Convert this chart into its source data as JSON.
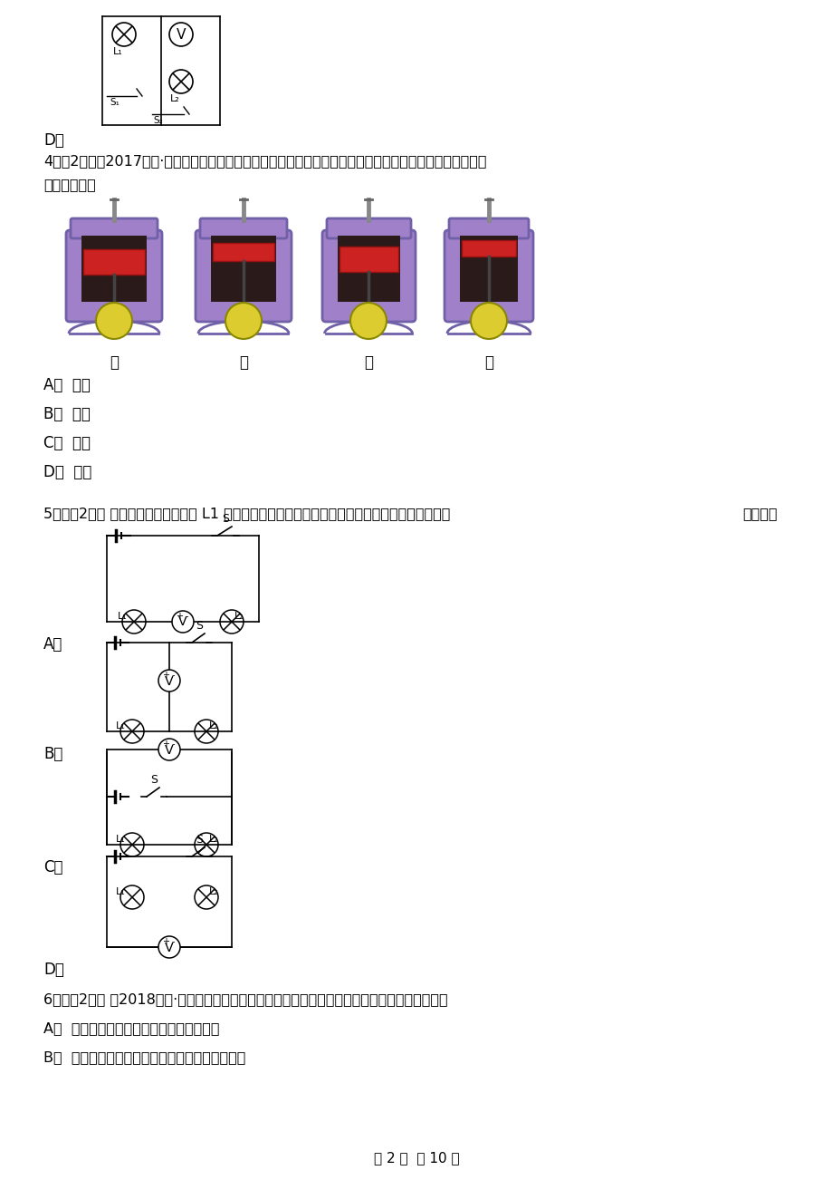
{
  "background_color": "#ffffff",
  "page_width": 9.2,
  "page_height": 13.02,
  "d_label": "D．",
  "question4_line1": "4．（2分）（2017九上·防城港期末）如图是四冲程发动机的工作循环示意图，其中将气体内能转化为机械能",
  "question4_line2": "的是（　　）",
  "engine_labels": [
    "甲",
    "乙",
    "丙",
    "丁"
  ],
  "q4_options": [
    "A．  图甲",
    "B．  图乙",
    "C．  图丙",
    "D．  图丁"
  ],
  "question5_line1": "5．　（2分） 小军想用电压表测出灯 L1 两端的电压，连接了如图所示的四个电路图，其中正确的是",
  "question5_right": "（　　）",
  "q5_labels": [
    "A．",
    "B．",
    "C．",
    "D．"
  ],
  "question6_line1": "6．　（2分） （2018九上·合肥期中）下列关于功、温度、内能和热量的描述中正确的是（　　）",
  "q6_optionA": "A．  物体的温度降低一定是对外做功造成的",
  "q6_optionB": "B．  物体从外界吸收了热量其分子热运动一定加剧",
  "page_footer": "第 2 页  共 10 页"
}
